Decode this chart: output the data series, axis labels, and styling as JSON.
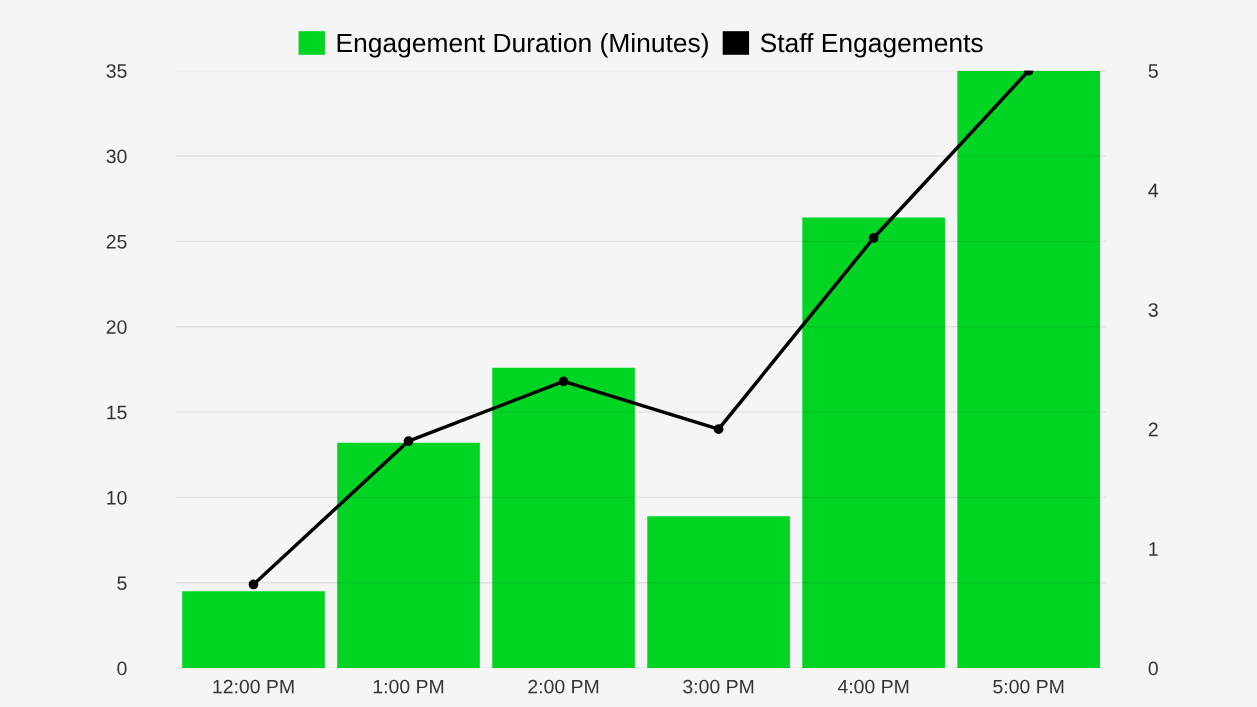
{
  "chart_data": {
    "type": "bar",
    "categories": [
      "12:00 PM",
      "1:00 PM",
      "2:00 PM",
      "3:00 PM",
      "4:00 PM",
      "5:00 PM"
    ],
    "series": [
      {
        "name": "Engagement Duration (Minutes)",
        "color": "#00d523",
        "values": [
          4.5,
          13.2,
          17.6,
          8.9,
          26.4,
          35
        ]
      },
      {
        "name": "Staff Engagements",
        "type": "line",
        "axis": "y2",
        "color": "#000000",
        "marker": "circle",
        "values": [
          0.7,
          1.9,
          2.4,
          2.0,
          3.6,
          5.0
        ]
      }
    ],
    "ylim": [
      0,
      35
    ],
    "yticks": [
      0,
      5,
      10,
      15,
      20,
      25,
      30,
      35
    ],
    "y2lim": [
      0,
      5
    ],
    "y2ticks": [
      0,
      1,
      2,
      3,
      4,
      5
    ],
    "grid": "y",
    "legend": "top"
  }
}
